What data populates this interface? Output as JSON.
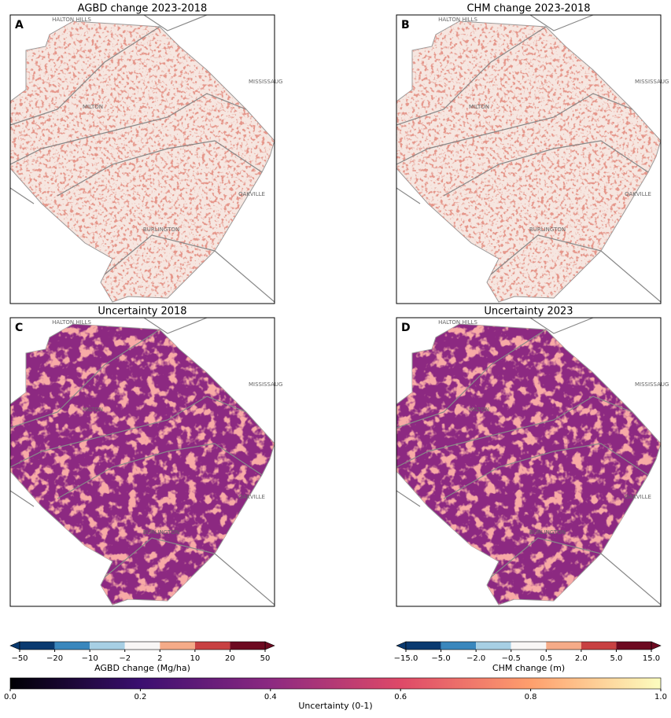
{
  "panels": [
    {
      "letter": "A",
      "title": "AGBD change 2023-2018",
      "places": [
        "HALTON HILLS",
        "MISSISSAUG",
        "MILTON",
        "OAKVILLE",
        "BURLINGTON"
      ]
    },
    {
      "letter": "B",
      "title": "CHM change 2023-2018",
      "places": [
        "HALTON HILLS",
        "MISSISSAUG",
        "MILTON",
        "OAKVILLE",
        "BURLINGTON"
      ]
    },
    {
      "letter": "C",
      "title": "Uncertainty 2018",
      "places": [
        "HALTON HILLS",
        "MISSISSAUG",
        "MILTON",
        "OAKVILLE",
        "BURLINGTON"
      ]
    },
    {
      "letter": "D",
      "title": "Uncertainty 2023",
      "places": [
        "HALTON HILLS",
        "MISSISSAUG",
        "MILTON",
        "OAKVILLE",
        "BURLINGTON"
      ]
    }
  ],
  "colorbars": [
    {
      "label": "AGBD change (Mg/ha)",
      "ticks": [
        {
          "value": -50,
          "label": "−50"
        },
        {
          "value": -20,
          "label": "−20"
        },
        {
          "value": -10,
          "label": "−10"
        },
        {
          "value": -2,
          "label": "−2"
        },
        2,
        10,
        20,
        50
      ],
      "colors": [
        "#0a3a70",
        "#3a87bd",
        "#a7cfe4",
        "#f8f6f5",
        "#f5ab88",
        "#c84142",
        "#6d0a21"
      ]
    },
    {
      "label": "CHM change (m)",
      "ticks": [
        {
          "value": -15,
          "label": "−15.0"
        },
        {
          "value": -5,
          "label": "−5.0"
        },
        {
          "value": -2,
          "label": "−2.0"
        },
        {
          "value": -0.5,
          "label": "−0.5"
        },
        0.5,
        {
          "value": 2,
          "label": "2.0"
        },
        {
          "value": 5,
          "label": "5.0"
        },
        {
          "value": 15,
          "label": "15.0"
        }
      ],
      "colors": [
        "#0a3a70",
        "#3a87bd",
        "#a7cfe4",
        "#f8f6f5",
        "#f5ab88",
        "#c84142",
        "#6d0a21"
      ]
    },
    {
      "label": "Uncertainty (0-1)",
      "ticks": [
        {
          "value": 0,
          "label": "0.0"
        },
        0.2,
        0.4,
        0.6,
        0.8,
        {
          "value": 1,
          "label": "1.0"
        }
      ],
      "colors": [
        "#000004",
        "#3b0f70",
        "#8c2981",
        "#de4968",
        "#fe9f6d",
        "#fcfdbf"
      ]
    }
  ]
}
